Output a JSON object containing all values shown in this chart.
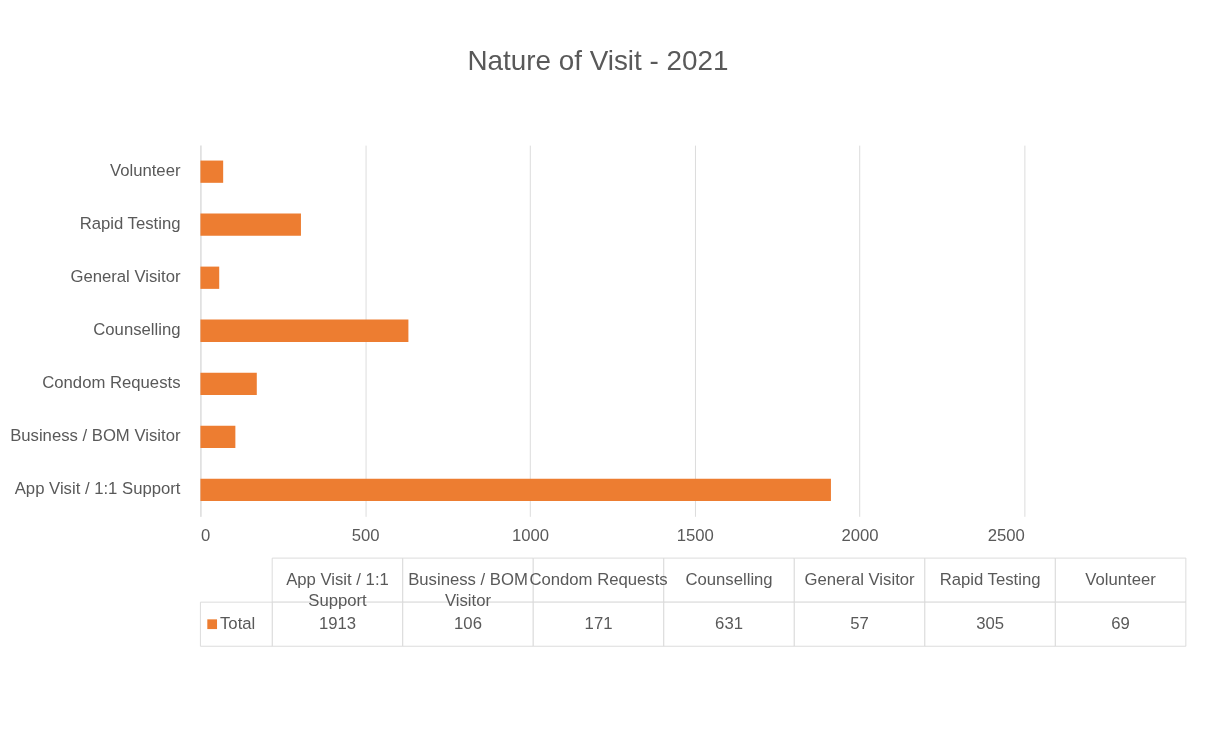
{
  "chart_data": {
    "type": "bar",
    "orientation": "horizontal",
    "title": "Nature of Visit - 2021",
    "categories": [
      "Volunteer",
      "Rapid Testing",
      "General Visitor",
      "Counselling",
      "Condom Requests",
      "Business / BOM Visitor",
      "App Visit / 1:1 Support"
    ],
    "series": [
      {
        "name": "Total",
        "color": "#ed7d31",
        "values": [
          69,
          305,
          57,
          631,
          171,
          106,
          1913
        ]
      }
    ],
    "xlim": [
      0,
      2500
    ],
    "xticks": [
      0,
      500,
      1000,
      1500,
      2000,
      2500
    ],
    "grid": "x",
    "annotations": [
      "69",
      "305",
      "57",
      "631",
      "171",
      "106",
      "1913"
    ]
  }
}
